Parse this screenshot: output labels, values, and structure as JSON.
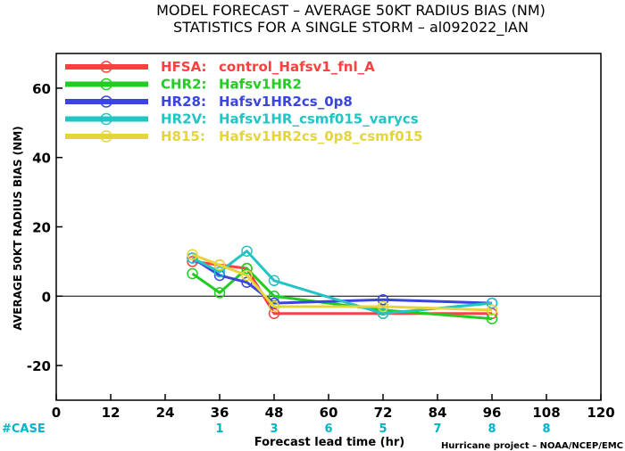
{
  "chart_data": {
    "type": "line",
    "title_line1": "MODEL FORECAST – AVERAGE 50KT RADIUS BIAS (NM)",
    "title_line2": "STATISTICS FOR A SINGLE STORM – al092022_IAN",
    "ylabel": "AVERAGE 50KT RADIUS BIAS (NM)",
    "xlabel": "Forecast lead time (hr)",
    "credit": "Hurricane project – NOAA/NCEP/EMC",
    "xlim": [
      0,
      120
    ],
    "ylim": [
      -30,
      70
    ],
    "x_ticks": [
      0,
      12,
      24,
      36,
      48,
      60,
      72,
      84,
      96,
      108,
      120
    ],
    "y_ticks": [
      -20,
      0,
      20,
      40,
      60
    ],
    "zero_line": true,
    "legend_placement": "top-left",
    "case_label": "#CASE",
    "cases": [
      {
        "x": 36,
        "n": "1"
      },
      {
        "x": 48,
        "n": "3"
      },
      {
        "x": 60,
        "n": "6"
      },
      {
        "x": 72,
        "n": "5"
      },
      {
        "x": 84,
        "n": "7"
      },
      {
        "x": 96,
        "n": "8"
      },
      {
        "x": 108,
        "n": "8"
      }
    ],
    "series": [
      {
        "code": "HFSA:",
        "name": "control_Hafsv1_fnl_A",
        "color": "#ff4040",
        "x": [
          30,
          36,
          42,
          48,
          72,
          96
        ],
        "y": [
          10,
          9,
          8,
          -5,
          -5,
          -5
        ]
      },
      {
        "code": "CHR2:",
        "name": "Hafsv1HR2",
        "color": "#22cc22",
        "x": [
          30,
          36,
          42,
          48,
          72,
          96
        ],
        "y": [
          6.5,
          1,
          8,
          0,
          -4,
          -6.5
        ]
      },
      {
        "code": "HR28:",
        "name": "Hafsv1HR2cs_0p8",
        "color": "#3a44e0",
        "x": [
          30,
          36,
          42,
          48,
          72,
          96
        ],
        "y": [
          11,
          6,
          4,
          -2,
          -1,
          -2
        ]
      },
      {
        "code": "HR2V:",
        "name": "Hafsv1HR_csmf015_varycs",
        "color": "#22c4c4",
        "x": [
          30,
          36,
          42,
          48,
          72,
          96
        ],
        "y": [
          11,
          7,
          13,
          4.5,
          -5,
          -2
        ]
      },
      {
        "code": "H815:",
        "name": "Hafsv1HR2cs_0p8_csmf015",
        "color": "#e6d43c",
        "x": [
          30,
          36,
          42,
          48,
          72,
          96
        ],
        "y": [
          12,
          9,
          6,
          -3,
          -3,
          -4
        ]
      }
    ]
  }
}
